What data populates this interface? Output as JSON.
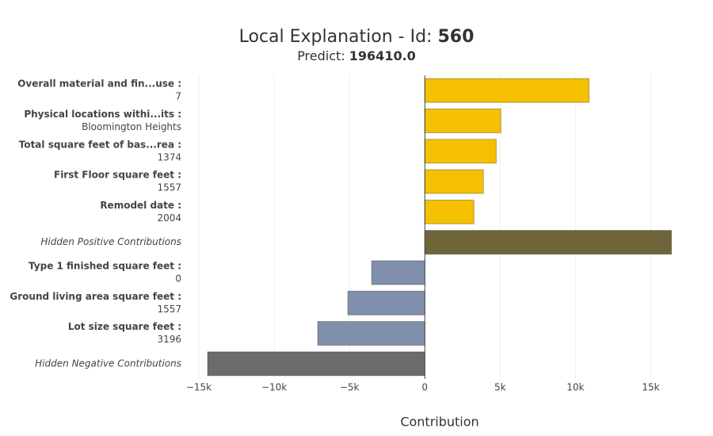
{
  "chart_data": {
    "type": "barh",
    "title": "Local Explanation - Id:",
    "title_id": "560",
    "subtitle": "Predict:",
    "subtitle_value": "196410.0",
    "x_label": "Contribution",
    "categories": [
      "Overall material and fin...use :",
      "Physical locations withi...its :",
      "Total square feet of bas...rea :",
      "First Floor square feet :",
      "Remodel date :",
      "Hidden Positive Contributions",
      "Type 1 finished square feet :",
      "Ground living area square feet :",
      "Lot size square feet :",
      "Hidden Negative Contributions"
    ],
    "category_values": [
      "7",
      "Bloomington Heights",
      "1374",
      "1557",
      "2004",
      null,
      "0",
      "1557",
      "3196",
      null
    ],
    "values": [
      10900,
      5050,
      4740,
      3890,
      3260,
      16370,
      -3530,
      -5110,
      -7110,
      -14420
    ],
    "colors": [
      "#f4c000",
      "#f4c000",
      "#f4c000",
      "#f4c000",
      "#f4c000",
      "#70643b",
      "#808fab",
      "#808fab",
      "#808fab",
      "#6c6c6c"
    ],
    "xlim": [
      -15000,
      16500
    ],
    "xticks": [
      {
        "value": -15000,
        "label": "−15k"
      },
      {
        "value": -10000,
        "label": "−10k"
      },
      {
        "value": -5000,
        "label": "−5k"
      },
      0,
      {
        "value": 5000,
        "label": "5k"
      },
      {
        "value": 10000,
        "label": "10k"
      },
      {
        "value": 15000,
        "label": "15k"
      }
    ],
    "grid": true
  }
}
